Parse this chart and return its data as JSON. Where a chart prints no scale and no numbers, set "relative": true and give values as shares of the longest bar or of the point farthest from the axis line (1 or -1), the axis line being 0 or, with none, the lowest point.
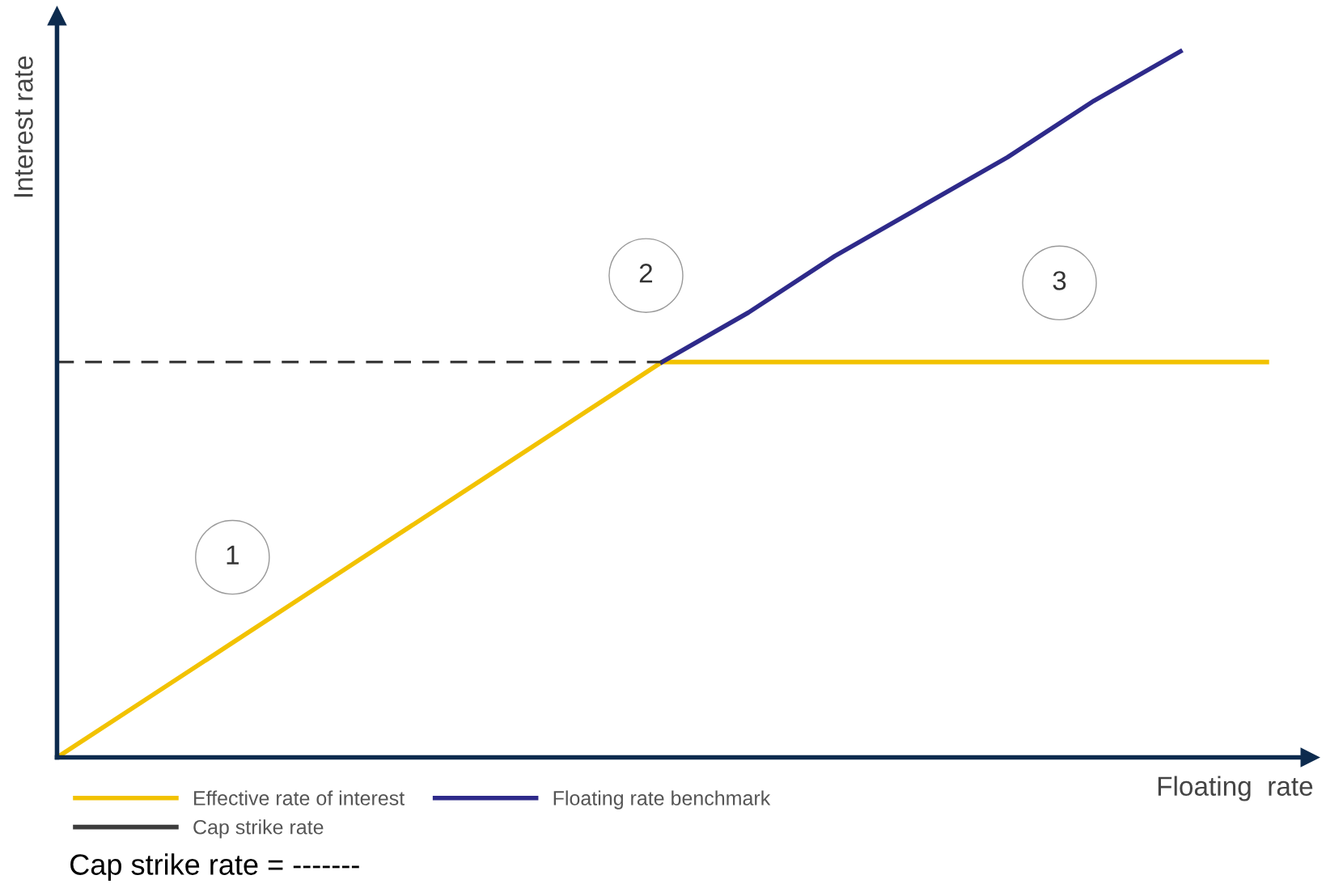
{
  "chart_data": {
    "type": "line",
    "relative": true,
    "xlabel": "Floating  rate",
    "ylabel": "Interest rate",
    "categories": [
      null,
      null,
      null,
      null,
      null,
      null,
      null,
      null,
      null,
      null,
      null,
      null,
      null,
      null,
      null
    ],
    "series": [
      {
        "name": "Effective rate of interest",
        "color": "#f2c200",
        "values": [
          0,
          0.08,
          0.16,
          0.24,
          0.32,
          0.4,
          0.48,
          0.56,
          0.56,
          0.56,
          0.56,
          0.56,
          0.56,
          0.56,
          0.56
        ]
      },
      {
        "name": "Floating rate benchmark",
        "color": "#2e2a8a",
        "values": [
          null,
          null,
          null,
          null,
          null,
          null,
          null,
          0.56,
          0.63,
          0.71,
          0.78,
          0.85,
          0.93,
          1.0,
          null
        ]
      },
      {
        "name": "Cap strike rate",
        "color": "#3c3c3c",
        "line_style": "dashed",
        "values": [
          0.56,
          0.56,
          0.56,
          0.56,
          0.56,
          0.56,
          0.56,
          0.56,
          null,
          null,
          null,
          null,
          null,
          null,
          null
        ]
      }
    ],
    "annotations": [
      "1",
      "2",
      "3",
      "Cap strike rate = -------"
    ],
    "legend": "bottom",
    "grid": false,
    "marker": "none"
  }
}
